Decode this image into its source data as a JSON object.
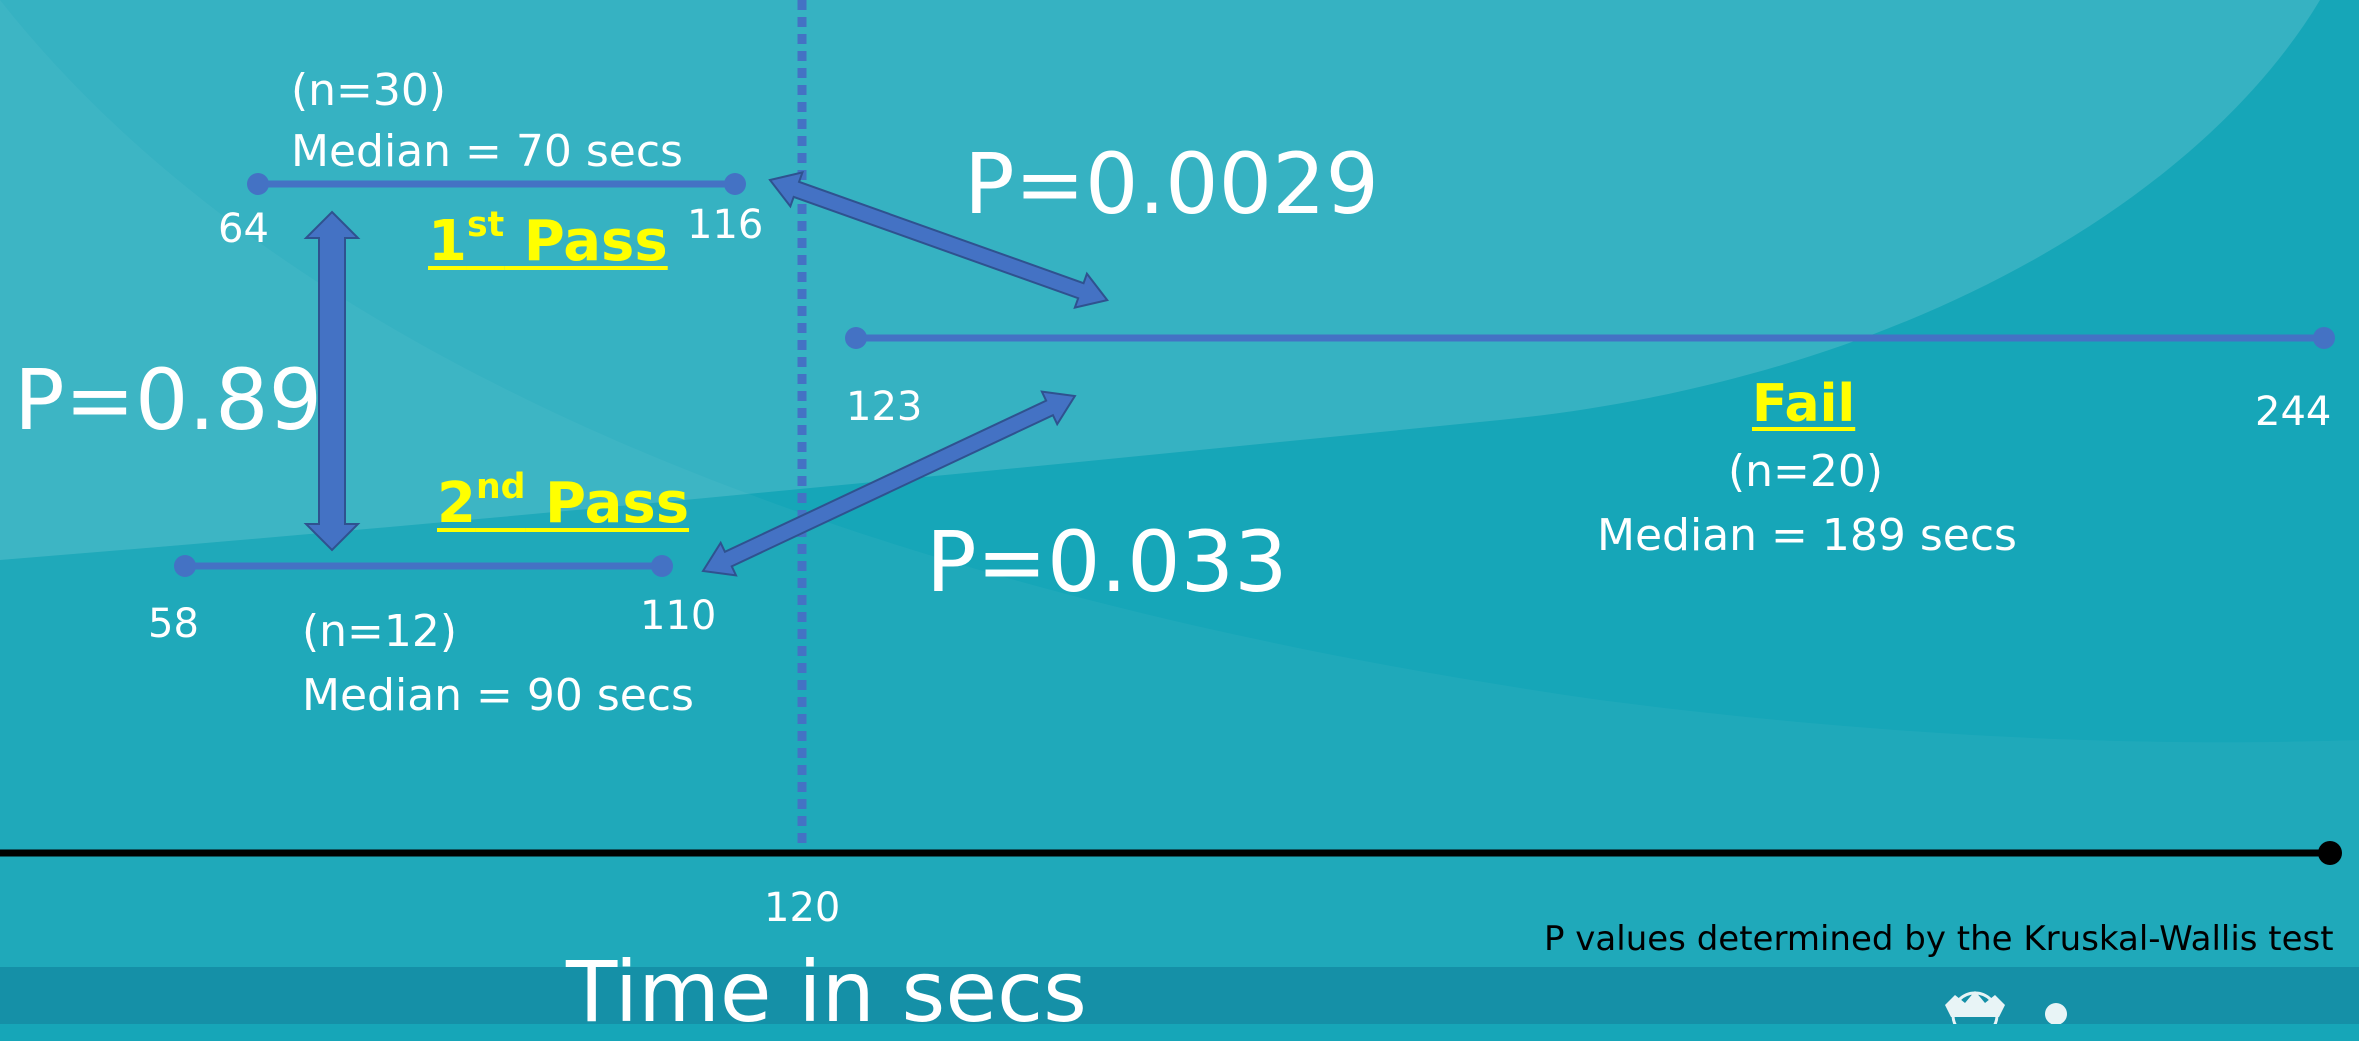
{
  "colors": {
    "background": "#16a6b8",
    "range_line": "#4472c4",
    "arrow": "#4472c4",
    "highlight_text": "#ffff00",
    "axis": "#000000"
  },
  "first_pass": {
    "n": "(n=30)",
    "median": "Median = 70 secs",
    "min_label": "64",
    "max_label": "116",
    "title": "1",
    "title_sup": "st",
    "title_rest": " Pass"
  },
  "second_pass": {
    "n": "(n=12)",
    "median": "Median = 90 secs",
    "min_label": "58",
    "max_label": "110",
    "title": "2",
    "title_sup": "nd",
    "title_rest": " Pass"
  },
  "fail": {
    "title": "Fail",
    "n": "(n=20)",
    "median": "Median = 189 secs",
    "min_label": "123",
    "max_label": "244"
  },
  "p_values": {
    "pass1_vs_pass2": "P=0.89",
    "pass1_vs_fail": "P=0.0029",
    "pass2_vs_fail": "P=0.033"
  },
  "axis": {
    "cutoff_label": "120",
    "title": "Time in secs"
  },
  "footnote": "P values determined by the Kruskal-Wallis test",
  "icons": [
    "crest-logo"
  ]
}
